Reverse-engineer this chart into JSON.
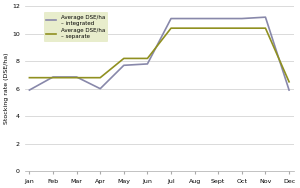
{
  "months": [
    "Jan",
    "Feb",
    "Mar",
    "Apr",
    "May",
    "Jun",
    "Jul",
    "Aug",
    "Sept",
    "Oct",
    "Nov",
    "Dec"
  ],
  "integrated": [
    5.9,
    6.85,
    6.85,
    6.0,
    7.7,
    7.8,
    11.1,
    11.1,
    11.1,
    11.1,
    11.2,
    5.9
  ],
  "separate": [
    6.8,
    6.8,
    6.8,
    6.8,
    8.2,
    8.2,
    10.4,
    10.4,
    10.4,
    10.4,
    10.4,
    6.5
  ],
  "color_integrated": "#8888aa",
  "color_separate": "#909020",
  "ylim": [
    0,
    12
  ],
  "yticks": [
    0,
    2,
    4,
    6,
    8,
    10,
    12
  ],
  "ylabel": "Stocking rate (DSE/ha)",
  "legend_label_1": "Average DSE/ha\n– integrated",
  "legend_label_2": "Average DSE/ha\n– separate",
  "legend_bg": "#e8edcc",
  "background_color": "#ffffff",
  "grid_color": "#cccccc",
  "figsize": [
    3.0,
    1.88
  ],
  "dpi": 100
}
